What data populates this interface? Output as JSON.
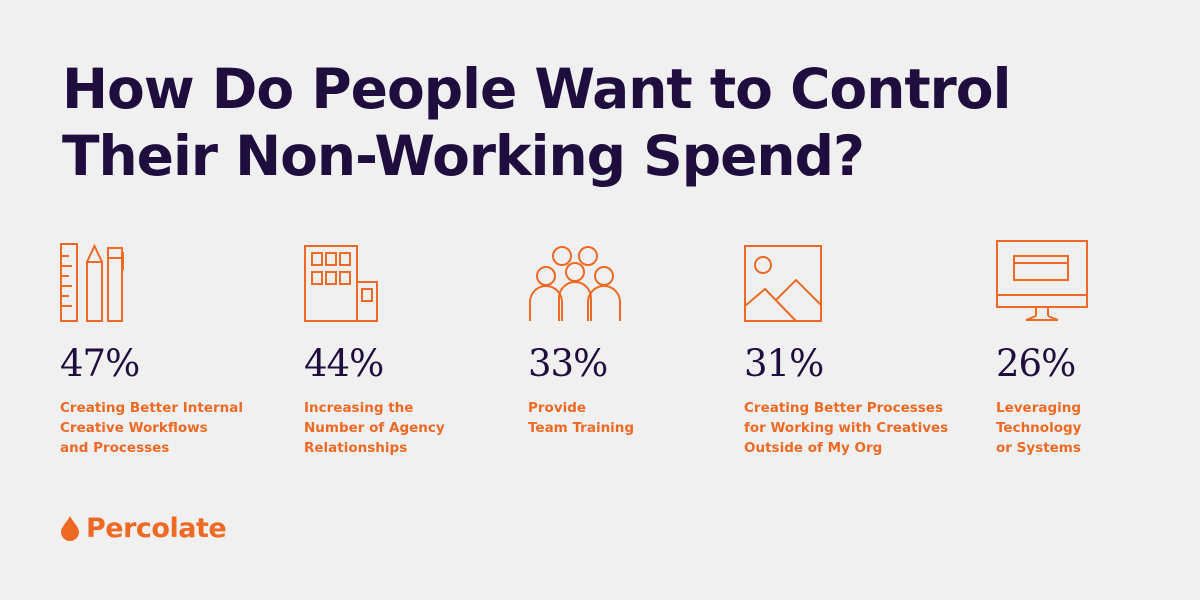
{
  "title": "How Do People Want to Control Their Non-Working Spend?",
  "accent_color": "#ee6a24",
  "title_color": "#1e0d3d",
  "stats": [
    {
      "icon": "ruler-pencil-pen-icon",
      "percent": "47%",
      "value": 47,
      "label": "Creating Better Internal\nCreative Workflows\nand Processes"
    },
    {
      "icon": "buildings-icon",
      "percent": "44%",
      "value": 44,
      "label": "Increasing the\nNumber of Agency\nRelationships"
    },
    {
      "icon": "team-people-icon",
      "percent": "33%",
      "value": 33,
      "label": "Provide\nTeam Training"
    },
    {
      "icon": "image-landscape-icon",
      "percent": "31%",
      "value": 31,
      "label": "Creating Better Processes\nfor Working with Creatives\nOutside of My Org"
    },
    {
      "icon": "computer-monitor-icon",
      "percent": "26%",
      "value": 26,
      "label": "Leveraging\nTechnology\nor Systems"
    }
  ],
  "brand": {
    "name": "Percolate",
    "icon": "drop-icon"
  }
}
